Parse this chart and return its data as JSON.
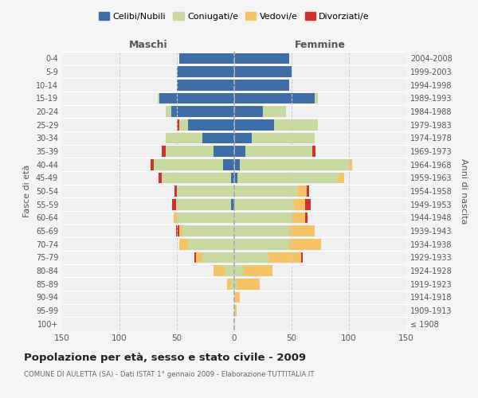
{
  "age_groups": [
    "100+",
    "95-99",
    "90-94",
    "85-89",
    "80-84",
    "75-79",
    "70-74",
    "65-69",
    "60-64",
    "55-59",
    "50-54",
    "45-49",
    "40-44",
    "35-39",
    "30-34",
    "25-29",
    "20-24",
    "15-19",
    "10-14",
    "5-9",
    "0-4"
  ],
  "birth_years": [
    "≤ 1908",
    "1909-1913",
    "1914-1918",
    "1919-1923",
    "1924-1928",
    "1929-1933",
    "1934-1938",
    "1939-1943",
    "1944-1948",
    "1949-1953",
    "1954-1958",
    "1959-1963",
    "1964-1968",
    "1969-1973",
    "1974-1978",
    "1979-1983",
    "1984-1988",
    "1989-1993",
    "1994-1998",
    "1999-2003",
    "2004-2008"
  ],
  "maschi": {
    "celibi": [
      0,
      0,
      0,
      0,
      0,
      0,
      0,
      0,
      0,
      3,
      0,
      3,
      10,
      18,
      28,
      40,
      55,
      65,
      50,
      50,
      48
    ],
    "coniugati": [
      0,
      0,
      0,
      3,
      8,
      28,
      40,
      45,
      50,
      48,
      50,
      60,
      60,
      42,
      32,
      8,
      5,
      2,
      0,
      0,
      0
    ],
    "vedovi": [
      0,
      0,
      0,
      3,
      10,
      5,
      8,
      3,
      3,
      0,
      0,
      0,
      0,
      0,
      0,
      0,
      0,
      0,
      0,
      0,
      0
    ],
    "divorziati": [
      0,
      0,
      0,
      0,
      0,
      2,
      0,
      3,
      0,
      3,
      2,
      3,
      3,
      3,
      0,
      2,
      0,
      0,
      0,
      0,
      0
    ]
  },
  "femmine": {
    "nubili": [
      0,
      0,
      0,
      0,
      0,
      0,
      0,
      0,
      0,
      0,
      0,
      3,
      5,
      10,
      15,
      35,
      25,
      70,
      48,
      50,
      48
    ],
    "coniugate": [
      0,
      0,
      0,
      2,
      8,
      30,
      48,
      48,
      50,
      52,
      55,
      88,
      95,
      58,
      55,
      38,
      20,
      3,
      0,
      0,
      0
    ],
    "vedove": [
      0,
      2,
      5,
      20,
      25,
      28,
      28,
      22,
      12,
      10,
      8,
      5,
      3,
      0,
      0,
      0,
      0,
      0,
      0,
      0,
      0
    ],
    "divorziate": [
      0,
      0,
      0,
      0,
      0,
      2,
      0,
      0,
      2,
      5,
      2,
      0,
      0,
      3,
      0,
      0,
      0,
      0,
      0,
      0,
      0
    ]
  },
  "colors": {
    "celibi_nubili": "#3d6ea8",
    "coniugati": "#c8d9a0",
    "vedovi": "#f5c264",
    "divorziati": "#d0312d"
  },
  "title": "Popolazione per età, sesso e stato civile - 2009",
  "subtitle": "COMUNE DI AULETTA (SA) - Dati ISTAT 1° gennaio 2009 - Elaborazione TUTTITALIA.IT",
  "xlabel_left": "Maschi",
  "xlabel_right": "Femmine",
  "ylabel_left": "Fasce di età",
  "ylabel_right": "Anni di nascita",
  "xlim": 150,
  "background_color": "#f5f5f5",
  "plot_bg": "#f0f0f0",
  "grid_color": "#ffffff"
}
